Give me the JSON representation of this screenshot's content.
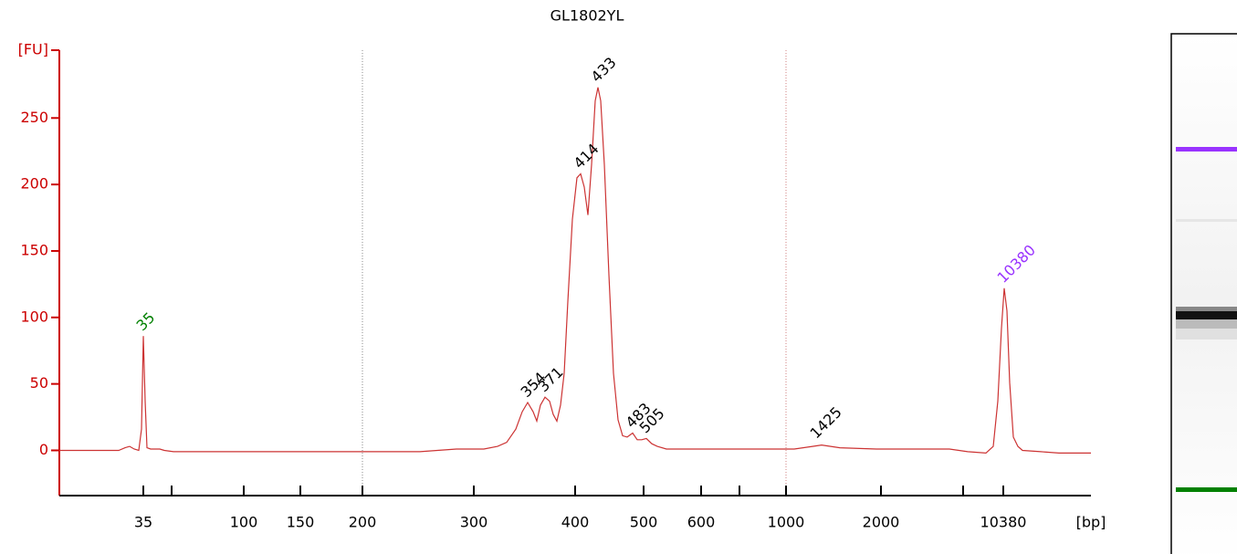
{
  "chart_data": {
    "type": "line",
    "title": "GL1802YL",
    "x_label": "[bp]",
    "axis_color": "#cc0000",
    "xlim": [
      0,
      113
    ],
    "ylim": [
      -34,
      301
    ],
    "xticks": [
      {
        "value": 9.2,
        "label": "35"
      },
      {
        "value": 20.2,
        "label": "100"
      },
      {
        "value": 26.4,
        "label": "150"
      },
      {
        "value": 33.2,
        "label": "200"
      },
      {
        "value": 45.4,
        "label": "300"
      },
      {
        "value": 56.5,
        "label": "400"
      },
      {
        "value": 64.0,
        "label": "500"
      },
      {
        "value": 70.3,
        "label": "600"
      },
      {
        "value": 79.6,
        "label": "1000"
      },
      {
        "value": 90.0,
        "label": "2000"
      },
      {
        "value": 103.4,
        "label": "10380"
      }
    ],
    "xminorticks": [
      12.3,
      74.5,
      99.0
    ],
    "yticks": [
      0,
      50,
      100,
      150,
      200,
      250,
      {
        "value": 301,
        "label": "[FU]"
      }
    ],
    "dotted_lines": [
      {
        "value": 33.2,
        "color": "#888888"
      },
      {
        "value": 79.6,
        "color": "#d08080"
      }
    ],
    "x": [
      0,
      6.5,
      7.2,
      7.7,
      8.2,
      8.7,
      9.0,
      9.2,
      9.4,
      9.6,
      10,
      10.5,
      11,
      11.5,
      12.5,
      15.5,
      23.5,
      33.5,
      39.5,
      43.5,
      45,
      46.5,
      48,
      49,
      50,
      50.7,
      51.3,
      51.9,
      52.3,
      52.7,
      53.2,
      53.7,
      54.1,
      54.5,
      54.9,
      55.3,
      55.7,
      56.2,
      56.7,
      57.1,
      57.5,
      57.9,
      58.3,
      58.7,
      59.0,
      59.3,
      59.7,
      60.2,
      60.7,
      61.2,
      61.7,
      62.2,
      62.8,
      63.3,
      63.8,
      64.3,
      64.9,
      65.5,
      66.5,
      69.5,
      72.5,
      76.5,
      80.5,
      82.5,
      83.5,
      84.5,
      85.5,
      89.5,
      93.5,
      97.5,
      99.5,
      101.5,
      102.3,
      102.8,
      103.2,
      103.5,
      103.8,
      104.1,
      104.5,
      105,
      105.5,
      107.5,
      109.5,
      113
    ],
    "series": [
      {
        "color": "#cc3333",
        "values": [
          0,
          0,
          2,
          3,
          1,
          0,
          16,
          86,
          37,
          2,
          1,
          1,
          1,
          0,
          -1,
          -1,
          -1,
          -1,
          -1,
          1,
          1,
          1,
          3,
          6,
          16,
          29,
          36,
          29,
          22,
          34,
          40,
          37,
          27,
          22,
          34,
          58,
          112,
          174,
          205,
          208,
          198,
          177,
          215,
          263,
          273,
          263,
          215,
          132,
          58,
          23,
          11,
          10,
          13,
          8,
          8,
          9,
          5,
          3,
          1,
          1,
          1,
          1,
          1,
          3,
          4,
          3,
          2,
          1,
          1,
          1,
          -1,
          -2,
          3,
          37,
          92,
          122,
          105,
          51,
          10,
          3,
          0,
          -1,
          -2,
          -2
        ]
      }
    ],
    "annotations": [
      {
        "text": "35",
        "x": 9.2,
        "y": 86,
        "color": "#008000"
      },
      {
        "text": "354",
        "x": 51.3,
        "y": 36,
        "color": "#000000"
      },
      {
        "text": "371",
        "x": 53.2,
        "y": 40,
        "color": "#000000"
      },
      {
        "text": "414",
        "x": 57.1,
        "y": 208,
        "color": "#000000"
      },
      {
        "text": "433",
        "x": 59.0,
        "y": 273,
        "color": "#000000"
      },
      {
        "text": "483",
        "x": 62.8,
        "y": 13,
        "color": "#000000"
      },
      {
        "text": "505",
        "x": 64.3,
        "y": 9,
        "color": "#000000"
      },
      {
        "text": "1425",
        "x": 83.0,
        "y": 5,
        "color": "#000000"
      },
      {
        "text": "10380",
        "x": 103.5,
        "y": 122,
        "color": "#9933ff"
      }
    ]
  }
}
